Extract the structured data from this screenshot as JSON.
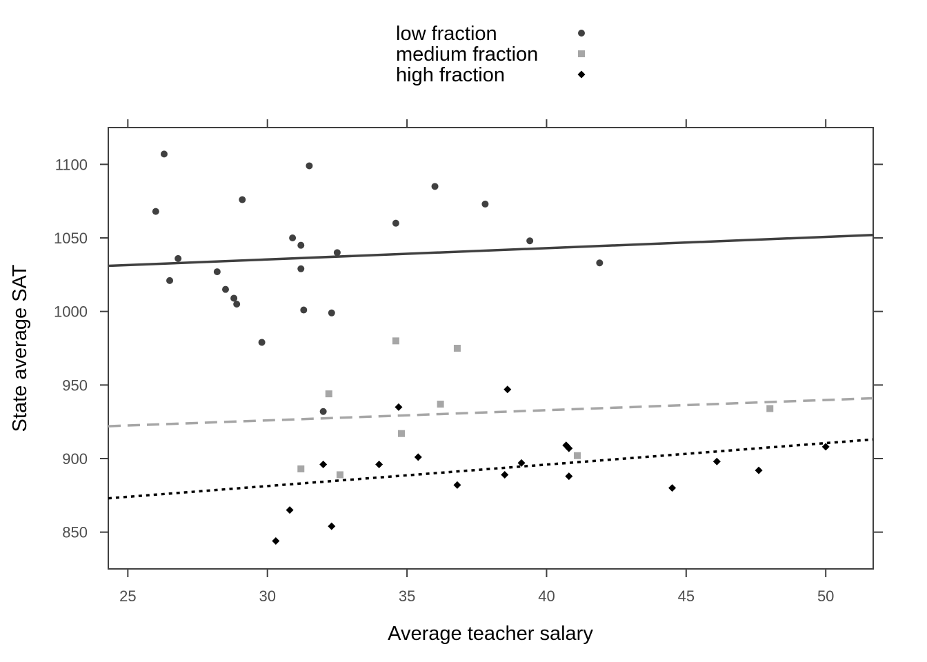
{
  "chart_data": {
    "type": "scatter",
    "title": "",
    "xlabel": "Average teacher salary",
    "ylabel": "State average SAT",
    "xlim": [
      24.3,
      51.7
    ],
    "ylim": [
      825,
      1125
    ],
    "xticks": [
      25,
      30,
      35,
      40,
      45,
      50
    ],
    "yticks": [
      850,
      900,
      950,
      1000,
      1050,
      1100
    ],
    "grid": false,
    "legend_position": "top-center",
    "series": [
      {
        "name": "low fraction",
        "color": "#404040",
        "marker": "circle",
        "line_style": "solid",
        "fit_line": [
          [
            24.3,
            1031
          ],
          [
            51.7,
            1052
          ]
        ],
        "points": [
          [
            26.0,
            1068
          ],
          [
            26.3,
            1107
          ],
          [
            26.5,
            1021
          ],
          [
            26.8,
            1036
          ],
          [
            28.2,
            1027
          ],
          [
            28.5,
            1015
          ],
          [
            28.8,
            1009
          ],
          [
            28.9,
            1005
          ],
          [
            29.1,
            1076
          ],
          [
            29.8,
            979
          ],
          [
            30.9,
            1050
          ],
          [
            31.2,
            1029
          ],
          [
            31.2,
            1045
          ],
          [
            31.3,
            1001
          ],
          [
            31.5,
            1099
          ],
          [
            32.0,
            932
          ],
          [
            32.3,
            999
          ],
          [
            32.5,
            1040
          ],
          [
            34.6,
            1060
          ],
          [
            36.0,
            1085
          ],
          [
            37.8,
            1073
          ],
          [
            39.4,
            1048
          ],
          [
            41.9,
            1033
          ]
        ]
      },
      {
        "name": "medium fraction",
        "color": "#a6a6a6",
        "marker": "square",
        "line_style": "dashed",
        "fit_line": [
          [
            24.3,
            922
          ],
          [
            51.7,
            941
          ]
        ],
        "points": [
          [
            31.2,
            893
          ],
          [
            32.2,
            944
          ],
          [
            32.6,
            889
          ],
          [
            34.6,
            980
          ],
          [
            34.8,
            917
          ],
          [
            36.2,
            937
          ],
          [
            36.8,
            975
          ],
          [
            41.1,
            902
          ],
          [
            48.0,
            934
          ]
        ]
      },
      {
        "name": "high fraction",
        "color": "#000000",
        "marker": "diamond",
        "line_style": "dotted",
        "fit_line": [
          [
            24.3,
            873
          ],
          [
            51.7,
            913
          ]
        ],
        "points": [
          [
            30.3,
            844
          ],
          [
            30.8,
            865
          ],
          [
            32.0,
            896
          ],
          [
            32.3,
            854
          ],
          [
            34.0,
            896
          ],
          [
            34.7,
            935
          ],
          [
            35.4,
            901
          ],
          [
            36.8,
            882
          ],
          [
            38.5,
            889
          ],
          [
            38.6,
            947
          ],
          [
            39.1,
            897
          ],
          [
            40.7,
            909
          ],
          [
            40.8,
            907
          ],
          [
            40.8,
            888
          ],
          [
            44.5,
            880
          ],
          [
            46.1,
            898
          ],
          [
            47.6,
            892
          ],
          [
            50.0,
            908
          ]
        ]
      }
    ]
  }
}
